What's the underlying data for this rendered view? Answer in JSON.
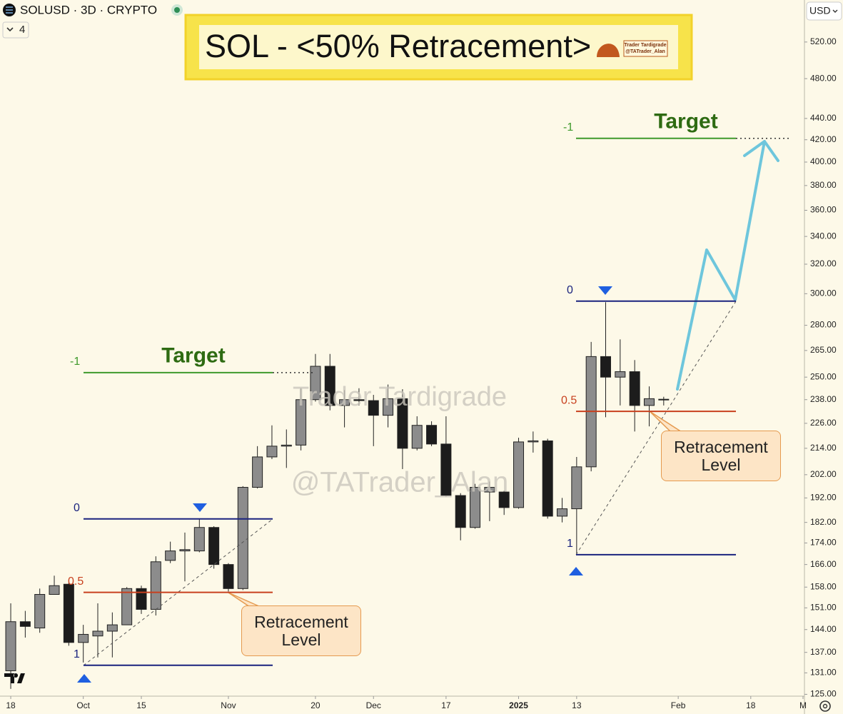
{
  "header": {
    "symbol": "SOLUSD · 3D · CRYPTO",
    "indicator_count": "4",
    "currency": "USD"
  },
  "chart_data": {
    "type": "candlestick",
    "title": "SOL - <50% Retracement>",
    "logo": {
      "name": "Trader Tardigrade",
      "handle": "@TATrader_Alan"
    },
    "watermark": [
      "Trader Tardigrade",
      "@TATrader_Alan"
    ],
    "x": [
      0,
      1,
      2,
      3,
      4,
      5,
      6,
      7,
      8,
      9,
      10,
      11,
      12,
      13,
      14,
      15,
      16,
      17,
      18,
      19,
      20,
      21,
      22,
      23,
      24,
      25,
      26,
      27,
      28,
      29,
      30,
      31,
      32,
      33,
      34,
      35,
      36,
      37,
      38,
      39,
      40,
      41,
      42,
      43,
      44,
      45
    ],
    "open": [
      131.6,
      146.5,
      144.5,
      155.5,
      159,
      140,
      142,
      143.5,
      145.5,
      157.5,
      150.5,
      167.5,
      171,
      171,
      180,
      166,
      157.5,
      196.5,
      210,
      215,
      215.5,
      238,
      256,
      235,
      238,
      237.5,
      230,
      238.5,
      214,
      225,
      216,
      193,
      180,
      194.5,
      194.5,
      188,
      217,
      217.5,
      184.5,
      187.5,
      205.5,
      261.5,
      250,
      253,
      235,
      238
    ],
    "high": [
      152.5,
      150,
      157.5,
      162,
      159.5,
      145.5,
      152.5,
      149.5,
      158,
      158.5,
      169,
      174.5,
      178,
      183.5,
      180.5,
      166.5,
      197,
      215,
      225,
      223,
      244,
      263,
      263,
      243,
      244,
      240.5,
      246,
      243.5,
      229.5,
      227,
      229.5,
      194,
      198,
      199,
      195,
      219,
      222,
      218.5,
      192,
      210,
      270,
      294.5,
      271.5,
      259.5,
      245,
      239.5
    ],
    "low": [
      126.5,
      141.5,
      143,
      155.5,
      139,
      134,
      135.5,
      135.5,
      145.5,
      149,
      148.5,
      166.5,
      160,
      170.5,
      164.5,
      156.5,
      157,
      196,
      209,
      205,
      213,
      237,
      232.5,
      224,
      235,
      215,
      224,
      204.5,
      213,
      215,
      192.5,
      175,
      179.5,
      182.5,
      185,
      187.5,
      212,
      183.5,
      182,
      169.5,
      203.5,
      229,
      235,
      222,
      224.5,
      235
    ],
    "close": [
      146.5,
      145,
      155.5,
      158.5,
      140,
      142.5,
      143.5,
      145.5,
      157.5,
      150.5,
      167,
      171,
      171.5,
      180,
      166,
      157.5,
      196.5,
      210,
      215,
      215.5,
      238,
      256,
      235,
      238,
      237.5,
      230,
      238.5,
      214,
      225,
      216,
      193,
      180,
      196.5,
      196.5,
      188,
      217,
      217.5,
      184.5,
      187.5,
      205.5,
      261.5,
      250,
      253,
      235,
      238.5,
      238.2
    ],
    "up_color": "#8c8c8c",
    "down_color": "#1c1c1c",
    "xlim": [
      -0.74,
      54.7
    ],
    "xticks": [
      {
        "value": 0,
        "label": "18"
      },
      {
        "value": 5,
        "label": "Oct"
      },
      {
        "value": 9,
        "label": "15"
      },
      {
        "value": 15,
        "label": "Nov"
      },
      {
        "value": 21,
        "label": "20"
      },
      {
        "value": 25,
        "label": "Dec"
      },
      {
        "value": 30,
        "label": "17"
      },
      {
        "value": 35,
        "label": "2025"
      },
      {
        "value": 39,
        "label": "13"
      },
      {
        "value": 46,
        "label": "Feb"
      },
      {
        "value": 51,
        "label": "18"
      },
      {
        "value": 54.6,
        "label": "M"
      }
    ],
    "ylim": [
      124.5,
      570
    ],
    "log_scale": true,
    "yticks": [
      {
        "value": 520,
        "label": "520.00"
      },
      {
        "value": 480,
        "label": "480.00"
      },
      {
        "value": 440,
        "label": "440.00"
      },
      {
        "value": 420,
        "label": "420.00"
      },
      {
        "value": 400,
        "label": "400.00"
      },
      {
        "value": 380,
        "label": "380.00"
      },
      {
        "value": 360,
        "label": "360.00"
      },
      {
        "value": 340,
        "label": "340.00"
      },
      {
        "value": 320,
        "label": "320.00"
      },
      {
        "value": 300,
        "label": "300.00"
      },
      {
        "value": 280,
        "label": "280.00"
      },
      {
        "value": 265,
        "label": "265.00"
      },
      {
        "value": 250,
        "label": "250.00"
      },
      {
        "value": 238,
        "label": "238.00"
      },
      {
        "value": 226,
        "label": "226.00"
      },
      {
        "value": 214,
        "label": "214.00"
      },
      {
        "value": 202,
        "label": "202.00"
      },
      {
        "value": 192,
        "label": "192.00"
      },
      {
        "value": 182,
        "label": "182.00"
      },
      {
        "value": 174,
        "label": "174.00"
      },
      {
        "value": 166,
        "label": "166.00"
      },
      {
        "value": 158,
        "label": "158.00"
      },
      {
        "value": 151,
        "label": "151.00"
      },
      {
        "value": 144,
        "label": "144.00"
      },
      {
        "value": 137,
        "label": "137.00"
      },
      {
        "value": 131,
        "label": "131.00"
      },
      {
        "value": 125,
        "label": "125.00"
      }
    ],
    "fibs": [
      {
        "levels": [
          {
            "label": "-1",
            "price": 252.5,
            "color": "#3f9a2c"
          },
          {
            "label": "0",
            "price": 183.4,
            "color": "#1a237e"
          },
          {
            "label": "0.5",
            "price": 156.2,
            "color": "#c8401e"
          },
          {
            "label": "1",
            "price": 133.2,
            "color": "#1a237e"
          }
        ],
        "target": "Target",
        "callout": "Retracement Level"
      },
      {
        "levels": [
          {
            "label": "-1",
            "price": 421.3,
            "color": "#3f9a2c"
          },
          {
            "label": "0",
            "price": 295.2,
            "color": "#1a237e"
          },
          {
            "label": "0.5",
            "price": 232,
            "color": "#c8401e"
          },
          {
            "label": "1",
            "price": 169.6,
            "color": "#1a237e"
          }
        ],
        "target": "Target",
        "callout": "Retracement Level"
      }
    ]
  }
}
